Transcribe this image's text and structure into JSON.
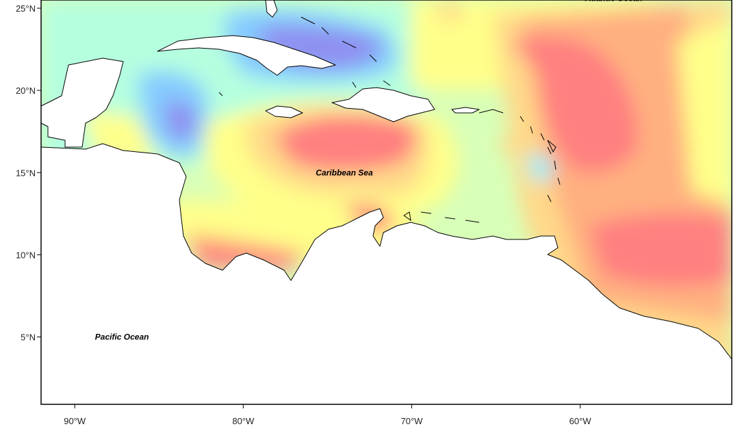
{
  "map": {
    "x_ticks": [
      {
        "lon": -90,
        "label": "90°W"
      },
      {
        "lon": -80,
        "label": "80°W"
      },
      {
        "lon": -70,
        "label": "70°W"
      },
      {
        "lon": -60,
        "label": "60°W"
      }
    ],
    "y_ticks": [
      {
        "lat": 25,
        "label": "25°N"
      },
      {
        "lat": 20,
        "label": "20°N"
      },
      {
        "lat": 15,
        "label": "15°N"
      },
      {
        "lat": 10,
        "label": "10°N"
      },
      {
        "lat": 5,
        "label": "5°N"
      }
    ],
    "extent": {
      "lon_min": -92,
      "lon_max": -51,
      "lat_min": 0.9,
      "lat_max": 25.5
    },
    "place_labels": [
      {
        "id": "caribbean",
        "text": "Caribbean Sea",
        "lon": -74,
        "lat": 15
      },
      {
        "id": "pacific",
        "text": "Pacific Ocean",
        "lon": -87.2,
        "lat": 5
      },
      {
        "id": "atlantic",
        "text": "Atlantic Ocean",
        "lon": -58,
        "lat": 25.6
      }
    ],
    "color_scale": [
      "#8f8ff0",
      "#85ccff",
      "#8ff0ff",
      "#b5ffdf",
      "#d8ffb8",
      "#ffff8a",
      "#ffd98a",
      "#ffb080",
      "#ff8080"
    ],
    "land_color": "#ffffff",
    "coast_color": "#000000"
  }
}
